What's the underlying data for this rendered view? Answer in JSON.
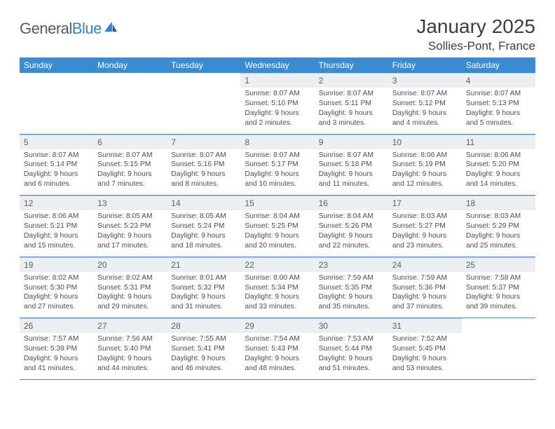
{
  "brand": {
    "prefix": "General",
    "suffix": "Blue"
  },
  "header": {
    "title": "January 2025",
    "location": "Sollies-Pont, France"
  },
  "colors": {
    "header_bg": "#3b8bd1",
    "header_text": "#ffffff",
    "daynum_bg": "#eceeef",
    "text": "#4a4f54",
    "rule": "#3b8bd1"
  },
  "weekdays": [
    "Sunday",
    "Monday",
    "Tuesday",
    "Wednesday",
    "Thursday",
    "Friday",
    "Saturday"
  ],
  "labels": {
    "sunrise": "Sunrise:",
    "sunset": "Sunset:",
    "daylight": "Daylight:"
  },
  "weeks": [
    [
      null,
      null,
      null,
      {
        "d": "1",
        "rise": "8:07 AM",
        "set": "5:10 PM",
        "dl1": "9 hours",
        "dl2": "and 2 minutes."
      },
      {
        "d": "2",
        "rise": "8:07 AM",
        "set": "5:11 PM",
        "dl1": "9 hours",
        "dl2": "and 3 minutes."
      },
      {
        "d": "3",
        "rise": "8:07 AM",
        "set": "5:12 PM",
        "dl1": "9 hours",
        "dl2": "and 4 minutes."
      },
      {
        "d": "4",
        "rise": "8:07 AM",
        "set": "5:13 PM",
        "dl1": "9 hours",
        "dl2": "and 5 minutes."
      }
    ],
    [
      {
        "d": "5",
        "rise": "8:07 AM",
        "set": "5:14 PM",
        "dl1": "9 hours",
        "dl2": "and 6 minutes."
      },
      {
        "d": "6",
        "rise": "8:07 AM",
        "set": "5:15 PM",
        "dl1": "9 hours",
        "dl2": "and 7 minutes."
      },
      {
        "d": "7",
        "rise": "8:07 AM",
        "set": "5:16 PM",
        "dl1": "9 hours",
        "dl2": "and 8 minutes."
      },
      {
        "d": "8",
        "rise": "8:07 AM",
        "set": "5:17 PM",
        "dl1": "9 hours",
        "dl2": "and 10 minutes."
      },
      {
        "d": "9",
        "rise": "8:07 AM",
        "set": "5:18 PM",
        "dl1": "9 hours",
        "dl2": "and 11 minutes."
      },
      {
        "d": "10",
        "rise": "8:06 AM",
        "set": "5:19 PM",
        "dl1": "9 hours",
        "dl2": "and 12 minutes."
      },
      {
        "d": "11",
        "rise": "8:06 AM",
        "set": "5:20 PM",
        "dl1": "9 hours",
        "dl2": "and 14 minutes."
      }
    ],
    [
      {
        "d": "12",
        "rise": "8:06 AM",
        "set": "5:21 PM",
        "dl1": "9 hours",
        "dl2": "and 15 minutes."
      },
      {
        "d": "13",
        "rise": "8:05 AM",
        "set": "5:23 PM",
        "dl1": "9 hours",
        "dl2": "and 17 minutes."
      },
      {
        "d": "14",
        "rise": "8:05 AM",
        "set": "5:24 PM",
        "dl1": "9 hours",
        "dl2": "and 18 minutes."
      },
      {
        "d": "15",
        "rise": "8:04 AM",
        "set": "5:25 PM",
        "dl1": "9 hours",
        "dl2": "and 20 minutes."
      },
      {
        "d": "16",
        "rise": "8:04 AM",
        "set": "5:26 PM",
        "dl1": "9 hours",
        "dl2": "and 22 minutes."
      },
      {
        "d": "17",
        "rise": "8:03 AM",
        "set": "5:27 PM",
        "dl1": "9 hours",
        "dl2": "and 23 minutes."
      },
      {
        "d": "18",
        "rise": "8:03 AM",
        "set": "5:29 PM",
        "dl1": "9 hours",
        "dl2": "and 25 minutes."
      }
    ],
    [
      {
        "d": "19",
        "rise": "8:02 AM",
        "set": "5:30 PM",
        "dl1": "9 hours",
        "dl2": "and 27 minutes."
      },
      {
        "d": "20",
        "rise": "8:02 AM",
        "set": "5:31 PM",
        "dl1": "9 hours",
        "dl2": "and 29 minutes."
      },
      {
        "d": "21",
        "rise": "8:01 AM",
        "set": "5:32 PM",
        "dl1": "9 hours",
        "dl2": "and 31 minutes."
      },
      {
        "d": "22",
        "rise": "8:00 AM",
        "set": "5:34 PM",
        "dl1": "9 hours",
        "dl2": "and 33 minutes."
      },
      {
        "d": "23",
        "rise": "7:59 AM",
        "set": "5:35 PM",
        "dl1": "9 hours",
        "dl2": "and 35 minutes."
      },
      {
        "d": "24",
        "rise": "7:59 AM",
        "set": "5:36 PM",
        "dl1": "9 hours",
        "dl2": "and 37 minutes."
      },
      {
        "d": "25",
        "rise": "7:58 AM",
        "set": "5:37 PM",
        "dl1": "9 hours",
        "dl2": "and 39 minutes."
      }
    ],
    [
      {
        "d": "26",
        "rise": "7:57 AM",
        "set": "5:39 PM",
        "dl1": "9 hours",
        "dl2": "and 41 minutes."
      },
      {
        "d": "27",
        "rise": "7:56 AM",
        "set": "5:40 PM",
        "dl1": "9 hours",
        "dl2": "and 44 minutes."
      },
      {
        "d": "28",
        "rise": "7:55 AM",
        "set": "5:41 PM",
        "dl1": "9 hours",
        "dl2": "and 46 minutes."
      },
      {
        "d": "29",
        "rise": "7:54 AM",
        "set": "5:43 PM",
        "dl1": "9 hours",
        "dl2": "and 48 minutes."
      },
      {
        "d": "30",
        "rise": "7:53 AM",
        "set": "5:44 PM",
        "dl1": "9 hours",
        "dl2": "and 51 minutes."
      },
      {
        "d": "31",
        "rise": "7:52 AM",
        "set": "5:45 PM",
        "dl1": "9 hours",
        "dl2": "and 53 minutes."
      },
      null
    ]
  ]
}
